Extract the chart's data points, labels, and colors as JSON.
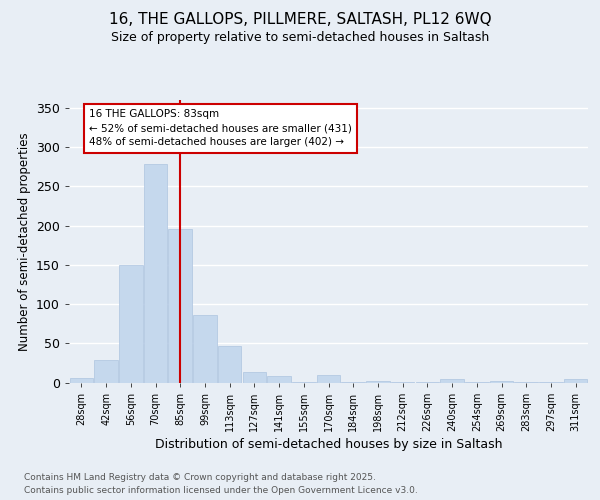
{
  "title_line1": "16, THE GALLOPS, PILLMERE, SALTASH, PL12 6WQ",
  "title_line2": "Size of property relative to semi-detached houses in Saltash",
  "xlabel": "Distribution of semi-detached houses by size in Saltash",
  "ylabel": "Number of semi-detached properties",
  "categories": [
    "28sqm",
    "42sqm",
    "56sqm",
    "70sqm",
    "85sqm",
    "99sqm",
    "113sqm",
    "127sqm",
    "141sqm",
    "155sqm",
    "170sqm",
    "184sqm",
    "198sqm",
    "212sqm",
    "226sqm",
    "240sqm",
    "254sqm",
    "269sqm",
    "283sqm",
    "297sqm",
    "311sqm"
  ],
  "values": [
    6,
    29,
    150,
    278,
    195,
    86,
    47,
    13,
    8,
    1,
    9,
    1,
    2,
    1,
    1,
    4,
    1,
    2,
    1,
    1,
    4
  ],
  "bar_color": "#c5d8ed",
  "bar_edge_color": "#adc4e0",
  "red_line_index": 4,
  "annotation_title": "16 THE GALLOPS: 83sqm",
  "annotation_line2": "← 52% of semi-detached houses are smaller (431)",
  "annotation_line3": "48% of semi-detached houses are larger (402) →",
  "annotation_color": "#cc0000",
  "ylim": [
    0,
    360
  ],
  "yticks": [
    0,
    50,
    100,
    150,
    200,
    250,
    300,
    350
  ],
  "background_color": "#e8eef5",
  "plot_bg_color": "#e8eef5",
  "footnote_line1": "Contains HM Land Registry data © Crown copyright and database right 2025.",
  "footnote_line2": "Contains public sector information licensed under the Open Government Licence v3.0."
}
